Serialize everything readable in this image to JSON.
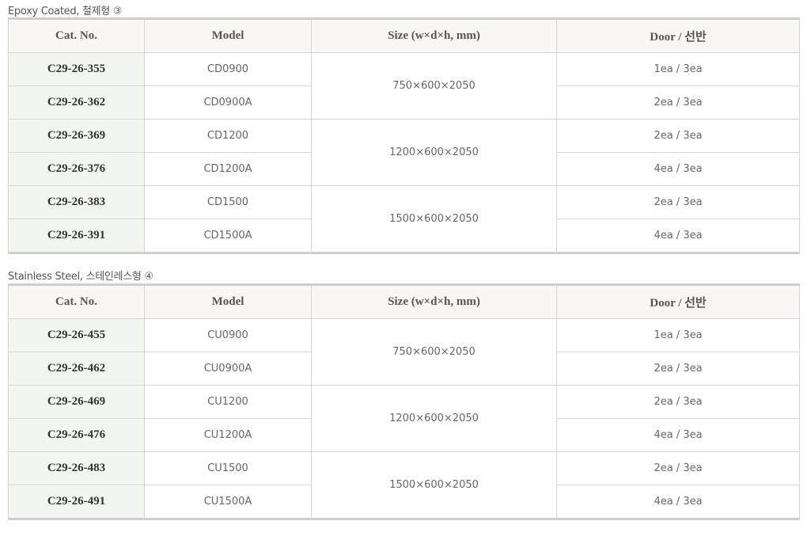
{
  "headers": {
    "cat": "Cat. No.",
    "model": "Model",
    "size": "Size (w×d×h, mm)",
    "door": "Door / 선반"
  },
  "sections": [
    {
      "title": "Epoxy Coated, 철제형 ③",
      "rows": [
        {
          "cat": "C29-26-355",
          "model": "CD0900",
          "size": "750×600×2050",
          "door": "1ea / 3ea"
        },
        {
          "cat": "C29-26-362",
          "model": "CD0900A",
          "door": "2ea / 3ea"
        },
        {
          "cat": "C29-26-369",
          "model": "CD1200",
          "size": "1200×600×2050",
          "door": "2ea / 3ea"
        },
        {
          "cat": "C29-26-376",
          "model": "CD1200A",
          "door": "4ea / 3ea"
        },
        {
          "cat": "C29-26-383",
          "model": "CD1500",
          "size": "1500×600×2050",
          "door": "2ea / 3ea"
        },
        {
          "cat": "C29-26-391",
          "model": "CD1500A",
          "door": "4ea / 3ea"
        }
      ]
    },
    {
      "title": "Stainless Steel, 스테인레스형 ④",
      "rows": [
        {
          "cat": "C29-26-455",
          "model": "CU0900",
          "size": "750×600×2050",
          "door": "1ea / 3ea"
        },
        {
          "cat": "C29-26-462",
          "model": "CU0900A",
          "door": "2ea / 3ea"
        },
        {
          "cat": "C29-26-469",
          "model": "CU1200",
          "size": "1200×600×2050",
          "door": "2ea / 3ea"
        },
        {
          "cat": "C29-26-476",
          "model": "CU1200A",
          "door": "4ea / 3ea"
        },
        {
          "cat": "C29-26-483",
          "model": "CU1500",
          "size": "1500×600×2050",
          "door": "2ea / 3ea"
        },
        {
          "cat": "C29-26-491",
          "model": "CU1500A",
          "door": "4ea / 3ea"
        }
      ]
    }
  ]
}
